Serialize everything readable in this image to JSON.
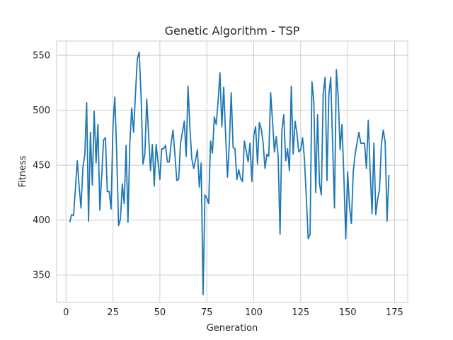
{
  "chart_data": {
    "type": "line",
    "title": "Genetic Algorithm - TSP",
    "xlabel": "Generation",
    "ylabel": "Fitness",
    "xlim": [
      -5,
      182
    ],
    "ylim": [
      325,
      563
    ],
    "xticks": [
      0,
      25,
      50,
      75,
      100,
      125,
      150,
      175
    ],
    "yticks": [
      350,
      400,
      450,
      500,
      550
    ],
    "grid": true,
    "colors": {
      "line": "#1f77b4",
      "grid": "#cccccc",
      "spine": "#cccccc",
      "background": "#ffffff"
    },
    "series": [
      {
        "x_start": 2,
        "values": [
          398,
          405,
          404,
          428,
          454,
          430,
          411,
          448,
          459,
          507,
          399,
          480,
          432,
          499,
          452,
          487,
          409,
          440,
          473,
          475,
          426,
          426,
          410,
          485,
          512,
          461,
          395,
          401,
          433,
          415,
          468,
          398,
          470,
          502,
          480,
          515,
          547,
          553,
          512,
          451,
          460,
          510,
          477,
          445,
          469,
          431,
          469,
          453,
          437,
          465,
          465,
          468,
          453,
          453,
          470,
          482,
          460,
          436,
          437,
          470,
          480,
          490,
          458,
          522,
          484,
          456,
          447,
          455,
          464,
          430,
          452,
          332,
          423,
          420,
          415,
          472,
          461,
          494,
          487,
          508,
          534,
          485,
          521,
          478,
          439,
          470,
          516,
          466,
          465,
          437,
          446,
          438,
          435,
          472,
          463,
          453,
          470,
          435,
          477,
          485,
          451,
          489,
          483,
          470,
          447,
          460,
          458,
          516,
          490,
          462,
          476,
          458,
          387,
          482,
          496,
          454,
          465,
          445,
          522,
          460,
          490,
          479,
          462,
          464,
          475,
          456,
          420,
          383,
          387,
          526,
          508,
          425,
          496,
          433,
          423,
          515,
          530,
          436,
          514,
          530,
          470,
          411,
          537,
          512,
          464,
          487,
          440,
          383,
          444,
          412,
          397,
          444,
          460,
          470,
          480,
          470,
          470,
          470,
          447,
          491,
          445,
          406,
          470,
          405,
          419,
          428,
          469,
          482,
          471,
          399,
          441
        ]
      }
    ]
  }
}
